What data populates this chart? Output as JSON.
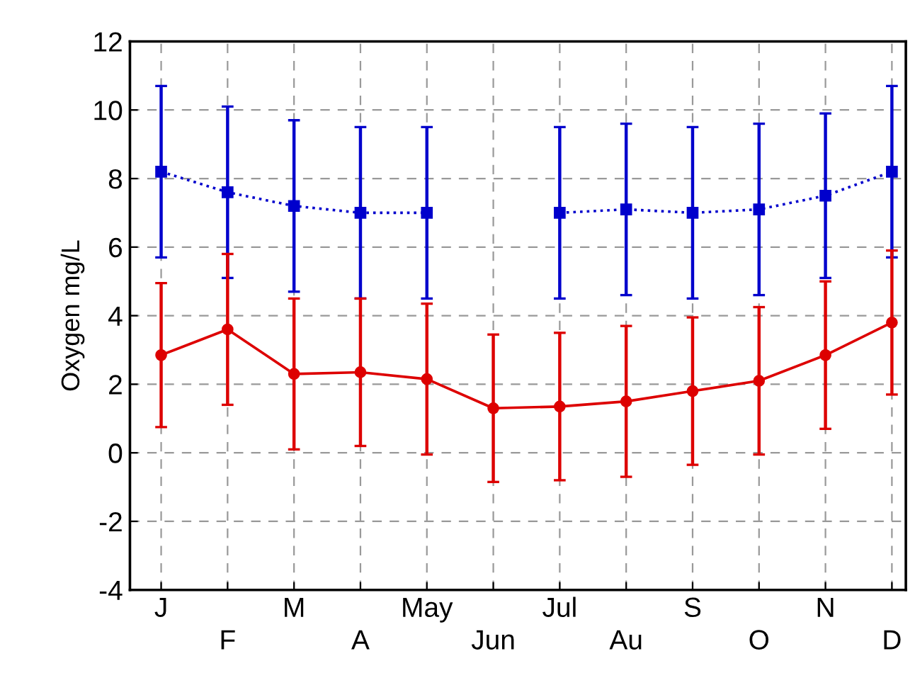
{
  "chart_data": {
    "type": "line",
    "ylabel": "Oxygen mg/L",
    "categories": [
      "J",
      "F",
      "M",
      "A",
      "May",
      "Jun",
      "Jul",
      "Au",
      "S",
      "O",
      "N",
      "D"
    ],
    "series": [
      {
        "color": "#0000cc",
        "marker": "square",
        "line_style": "dotted",
        "values": [
          8.2,
          7.6,
          7.2,
          7.0,
          7.0,
          null,
          7.0,
          7.1,
          7.0,
          7.1,
          7.5,
          8.2
        ],
        "errors": [
          2.5,
          2.5,
          2.5,
          2.5,
          2.5,
          null,
          2.5,
          2.5,
          2.5,
          2.5,
          2.4,
          2.5
        ]
      },
      {
        "color": "#dd0000",
        "marker": "circle",
        "line_style": "solid",
        "values": [
          2.85,
          3.6,
          2.3,
          2.35,
          2.15,
          1.3,
          1.35,
          1.5,
          1.8,
          2.1,
          2.85,
          3.8
        ],
        "errors": [
          2.1,
          2.2,
          2.2,
          2.15,
          2.2,
          2.15,
          2.15,
          2.2,
          2.15,
          2.15,
          2.15,
          2.1
        ]
      }
    ],
    "ylim": [
      -4,
      12
    ],
    "yticks": [
      -4,
      -2,
      0,
      2,
      4,
      6,
      8,
      10,
      12
    ],
    "grid": true
  }
}
